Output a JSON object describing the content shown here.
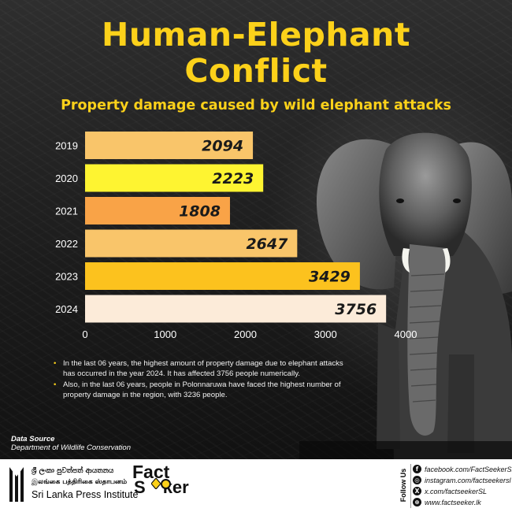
{
  "header": {
    "title_line1": "Human-Elephant",
    "title_line2": "Conflict",
    "subtitle": "Property damage caused by wild elephant attacks"
  },
  "chart_data": {
    "type": "bar",
    "orientation": "horizontal",
    "categories": [
      "2019",
      "2020",
      "2021",
      "2022",
      "2023",
      "2024"
    ],
    "values": [
      2094,
      2223,
      1808,
      2647,
      3429,
      3756
    ],
    "value_labels": [
      "2094",
      "2223",
      "1808",
      "2647",
      "3429",
      "3756"
    ],
    "bar_colors": [
      "#f9c56a",
      "#fef431",
      "#f9a347",
      "#f9c56a",
      "#fcc21e",
      "#fcebd9"
    ],
    "x_ticks": [
      "0",
      "1000",
      "2000",
      "3000",
      "4000"
    ],
    "x_tick_values": [
      0,
      1000,
      2000,
      3000,
      4000
    ],
    "xlim": [
      0,
      4000
    ],
    "title": "Property damage caused by wild elephant attacks",
    "xlabel": "",
    "ylabel": "",
    "grid": false,
    "legend": "none"
  },
  "notes": [
    "In the last 06 years, the highest amount of property damage due to elephant attacks has occurred in the year 2024. It has affected 3756 people numerically.",
    "Also, in the last 06 years, people in Polonnaruwa have faced the highest number of property damage in the region, with 3236 people."
  ],
  "source": {
    "label": "Data Source",
    "value": "Department of Wildlife Conservation"
  },
  "footer": {
    "spi_sinhala": "ශ්‍රී ලංකා පුවත්පත් ආයතනය",
    "spi_tamil": "இலங்கை பத்திரிகை ஸ்தாபனம்",
    "spi_english": "Sri Lanka Press Institute",
    "brand_line1": "Fact",
    "brand_line2a": "S",
    "brand_line2b": "ker",
    "follow_label": "Follow Us",
    "social": [
      {
        "icon": "facebook-icon",
        "glyph": "f",
        "text": "facebook.com/FactSeekerSL"
      },
      {
        "icon": "instagram-icon",
        "glyph": "◎",
        "text": "instagram.com/factseekersl"
      },
      {
        "icon": "x-icon",
        "glyph": "X",
        "text": "x.com/factseekerSL"
      },
      {
        "icon": "web-icon",
        "glyph": "⊕",
        "text": "www.factseeker.lk"
      }
    ]
  },
  "colors": {
    "accent": "#fcd11a",
    "background": "#1b1b1b",
    "bar_text": "#1a1a1a",
    "axis_text": "#ffffff"
  }
}
